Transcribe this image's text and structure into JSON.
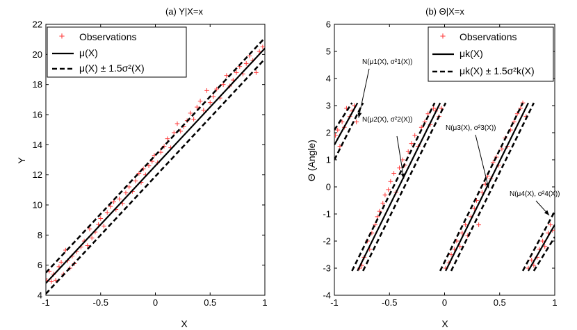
{
  "chart_data": [
    {
      "type": "scatter",
      "title": "(a) Y|X=x",
      "xlabel": "X",
      "ylabel": "Y",
      "xlim": [
        -1,
        1
      ],
      "ylim": [
        4,
        22
      ],
      "xticks": [
        -1,
        -0.5,
        0,
        0.5,
        1
      ],
      "xtick_labels": [
        "-1",
        "-0.5",
        "0",
        "0.5",
        "1"
      ],
      "yticks": [
        4,
        6,
        8,
        10,
        12,
        14,
        16,
        18,
        20,
        22
      ],
      "ytick_labels": [
        "4",
        "6",
        "8",
        "10",
        "12",
        "14",
        "16",
        "18",
        "20",
        "22"
      ],
      "legend": {
        "position": "top-left",
        "entries": [
          "Observations",
          "μ(X)",
          "μ(X) ± 1.5σ²(X)"
        ]
      },
      "series": [
        {
          "name": "Observations",
          "style": "red-plus",
          "points": [
            [
              -0.99,
              5.0
            ],
            [
              -0.97,
              5.6
            ],
            [
              -0.95,
              4.9
            ],
            [
              -0.93,
              5.4
            ],
            [
              -0.91,
              5.0
            ],
            [
              -0.88,
              5.9
            ],
            [
              -0.86,
              6.2
            ],
            [
              -0.84,
              5.4
            ],
            [
              -0.82,
              7.0
            ],
            [
              -0.8,
              6.3
            ],
            [
              -0.78,
              5.8
            ],
            [
              -0.76,
              6.6
            ],
            [
              -0.74,
              6.1
            ],
            [
              -0.72,
              6.9
            ],
            [
              -0.68,
              7.2
            ],
            [
              -0.65,
              7.6
            ],
            [
              -0.62,
              7.3
            ],
            [
              -0.6,
              8.4
            ],
            [
              -0.58,
              7.8
            ],
            [
              -0.55,
              8.2
            ],
            [
              -0.52,
              8.7
            ],
            [
              -0.5,
              9.1
            ],
            [
              -0.47,
              8.6
            ],
            [
              -0.44,
              9.5
            ],
            [
              -0.41,
              9.9
            ],
            [
              -0.38,
              10.2
            ],
            [
              -0.36,
              9.7
            ],
            [
              -0.33,
              10.4
            ],
            [
              -0.3,
              10.1
            ],
            [
              -0.27,
              10.8
            ],
            [
              -0.24,
              11.2
            ],
            [
              -0.21,
              10.9
            ],
            [
              -0.18,
              11.6
            ],
            [
              -0.15,
              12.1
            ],
            [
              -0.13,
              11.5
            ],
            [
              -0.11,
              12.4
            ],
            [
              -0.09,
              12.0
            ],
            [
              -0.06,
              12.6
            ],
            [
              -0.03,
              12.9
            ],
            [
              -0.01,
              13.3
            ],
            [
              0.02,
              12.8
            ],
            [
              0.05,
              13.5
            ],
            [
              0.08,
              13.9
            ],
            [
              0.11,
              14.4
            ],
            [
              0.14,
              13.8
            ],
            [
              0.17,
              14.8
            ],
            [
              0.2,
              15.4
            ],
            [
              0.23,
              14.9
            ],
            [
              0.26,
              15.2
            ],
            [
              0.29,
              15.6
            ],
            [
              0.32,
              16.1
            ],
            [
              0.35,
              15.7
            ],
            [
              0.38,
              16.5
            ],
            [
              0.41,
              16.9
            ],
            [
              0.44,
              16.3
            ],
            [
              0.47,
              17.6
            ],
            [
              0.5,
              16.8
            ],
            [
              0.53,
              17.2
            ],
            [
              0.56,
              17.7
            ],
            [
              0.59,
              17.1
            ],
            [
              0.62,
              18.0
            ],
            [
              0.65,
              18.6
            ],
            [
              0.68,
              17.9
            ],
            [
              0.71,
              18.3
            ],
            [
              0.74,
              18.8
            ],
            [
              0.77,
              19.2
            ],
            [
              0.8,
              18.7
            ],
            [
              0.83,
              19.4
            ],
            [
              0.86,
              19.9
            ],
            [
              0.89,
              19.6
            ],
            [
              0.92,
              18.8
            ],
            [
              0.95,
              20.2
            ],
            [
              0.98,
              20.5
            ]
          ]
        },
        {
          "name": "μ(X)",
          "style": "solid",
          "points": [
            [
              -1,
              4.8
            ],
            [
              1,
              20.4
            ]
          ]
        },
        {
          "name": "μ(X) + 1.5σ²(X)",
          "style": "dashed",
          "points": [
            [
              -1,
              5.5
            ],
            [
              1,
              21.1
            ]
          ]
        },
        {
          "name": "μ(X) − 1.5σ²(X)",
          "style": "dashed",
          "points": [
            [
              -1,
              4.1
            ],
            [
              1,
              19.7
            ]
          ]
        }
      ]
    },
    {
      "type": "scatter",
      "title": "(b) Θ|X=x",
      "xlabel": "X",
      "ylabel": "Θ (Angle)",
      "xlim": [
        -1,
        1
      ],
      "ylim": [
        -4,
        6
      ],
      "xticks": [
        -1,
        -0.5,
        0,
        0.5,
        1
      ],
      "xtick_labels": [
        "-1",
        "-0.5",
        "0",
        "0.5",
        "1"
      ],
      "yticks": [
        -4,
        -3,
        -2,
        -1,
        0,
        1,
        2,
        3,
        4,
        5,
        6
      ],
      "ytick_labels": [
        "-4",
        "-3",
        "-2",
        "-1",
        "0",
        "1",
        "2",
        "3",
        "4",
        "5",
        "6"
      ],
      "legend": {
        "position": "top-right",
        "entries": [
          "Observations",
          "μk(X)",
          "μk(X) ± 1.5σ²k(X)"
        ]
      },
      "annotations": [
        {
          "text": "N(μ1(X), σ²1(X))",
          "target": [
            -0.78,
            2.55
          ]
        },
        {
          "text": "N(μ2(X), σ²2(X))",
          "target": [
            -0.37,
            0.3
          ]
        },
        {
          "text": "N(μ3(X), σ²3(X))",
          "target": [
            0.4,
            -0.05
          ]
        },
        {
          "text": "N(μ4(X), σ²4(X))",
          "target": [
            0.95,
            -1.05
          ]
        }
      ],
      "series": [
        {
          "name": "Observations",
          "style": "red-plus",
          "points": [
            [
              -0.99,
              1.9
            ],
            [
              -0.97,
              2.1
            ],
            [
              -0.95,
              1.5
            ],
            [
              -0.93,
              2.4
            ],
            [
              -0.91,
              2.2
            ],
            [
              -0.89,
              2.9
            ],
            [
              -0.86,
              2.6
            ],
            [
              -0.84,
              2.8
            ],
            [
              -0.82,
              3.0
            ],
            [
              -0.8,
              2.4
            ],
            [
              -0.77,
              -3.0
            ],
            [
              -0.75,
              -2.9
            ],
            [
              -0.73,
              -2.6
            ],
            [
              -0.7,
              -2.0
            ],
            [
              -0.68,
              -2.3
            ],
            [
              -0.66,
              -1.7
            ],
            [
              -0.63,
              -1.4
            ],
            [
              -0.61,
              -1.1
            ],
            [
              -0.59,
              -0.9
            ],
            [
              -0.56,
              -0.6
            ],
            [
              -0.54,
              -0.3
            ],
            [
              -0.51,
              -0.1
            ],
            [
              -0.49,
              0.2
            ],
            [
              -0.46,
              0.5
            ],
            [
              -0.44,
              -0.2
            ],
            [
              -0.41,
              0.7
            ],
            [
              -0.38,
              1.0
            ],
            [
              -0.36,
              0.8
            ],
            [
              -0.33,
              1.3
            ],
            [
              -0.3,
              1.6
            ],
            [
              -0.27,
              1.9
            ],
            [
              -0.24,
              1.5
            ],
            [
              -0.21,
              2.2
            ],
            [
              -0.18,
              2.4
            ],
            [
              -0.15,
              2.7
            ],
            [
              -0.13,
              2.3
            ],
            [
              -0.1,
              2.9
            ],
            [
              -0.08,
              2.8
            ],
            [
              -0.05,
              2.6
            ],
            [
              -0.03,
              2.9
            ],
            [
              0.01,
              -3.0
            ],
            [
              0.04,
              -2.8
            ],
            [
              0.06,
              -2.5
            ],
            [
              0.09,
              -2.3
            ],
            [
              0.11,
              -2.0
            ],
            [
              0.14,
              -2.2
            ],
            [
              0.16,
              -1.7
            ],
            [
              0.19,
              -1.4
            ],
            [
              0.21,
              -1.8
            ],
            [
              0.24,
              -1.1
            ],
            [
              0.27,
              -0.8
            ],
            [
              0.29,
              -0.5
            ],
            [
              0.31,
              -1.4
            ],
            [
              0.34,
              -0.2
            ],
            [
              0.37,
              0.1
            ],
            [
              0.39,
              0.4
            ],
            [
              0.42,
              0.3
            ],
            [
              0.44,
              0.9
            ],
            [
              0.47,
              1.1
            ],
            [
              0.49,
              0.8
            ],
            [
              0.52,
              1.4
            ],
            [
              0.55,
              1.8
            ],
            [
              0.57,
              1.5
            ],
            [
              0.6,
              2.1
            ],
            [
              0.63,
              2.4
            ],
            [
              0.66,
              2.7
            ],
            [
              0.69,
              2.9
            ],
            [
              0.71,
              3.1
            ],
            [
              0.74,
              2.6
            ],
            [
              0.76,
              -3.0
            ],
            [
              0.79,
              -2.7
            ],
            [
              0.81,
              -2.9
            ],
            [
              0.84,
              -2.6
            ],
            [
              0.86,
              -2.3
            ],
            [
              0.89,
              -2.0
            ],
            [
              0.91,
              -2.2
            ],
            [
              0.94,
              -1.7
            ],
            [
              0.96,
              -1.4
            ],
            [
              0.98,
              -1.6
            ]
          ]
        },
        {
          "name": "μ1(X)",
          "style": "solid",
          "points": [
            [
              -1,
              1.55
            ],
            [
              -0.79,
              3.1
            ]
          ]
        },
        {
          "name": "μ1(X) + 1.5σ²1(X)",
          "style": "dashed",
          "points": [
            [
              -1,
              2.1
            ],
            [
              -0.84,
              3.1
            ]
          ]
        },
        {
          "name": "μ1(X) − 1.5σ²1(X)",
          "style": "dashed",
          "points": [
            [
              -1,
              1.0
            ],
            [
              -0.74,
              3.1
            ]
          ]
        },
        {
          "name": "μ2(X)",
          "style": "solid",
          "points": [
            [
              -0.79,
              -3.1
            ],
            [
              -0.04,
              3.1
            ]
          ]
        },
        {
          "name": "μ2(X) + 1.5σ²2(X)",
          "style": "dashed",
          "points": [
            [
              -0.84,
              -3.1
            ],
            [
              -0.09,
              3.1
            ]
          ]
        },
        {
          "name": "μ2(X) − 1.5σ²2(X)",
          "style": "dashed",
          "points": [
            [
              -0.74,
              -3.1
            ],
            [
              0.01,
              3.1
            ]
          ]
        },
        {
          "name": "μ3(X)",
          "style": "solid",
          "points": [
            [
              0.01,
              -3.1
            ],
            [
              0.76,
              3.1
            ]
          ]
        },
        {
          "name": "μ3(X) + 1.5σ²3(X)",
          "style": "dashed",
          "points": [
            [
              -0.04,
              -3.1
            ],
            [
              0.71,
              3.1
            ]
          ]
        },
        {
          "name": "μ3(X) − 1.5σ²3(X)",
          "style": "dashed",
          "points": [
            [
              0.06,
              -3.1
            ],
            [
              0.81,
              3.1
            ]
          ]
        },
        {
          "name": "μ4(X)",
          "style": "solid",
          "points": [
            [
              0.76,
              -3.1
            ],
            [
              1,
              -1.4
            ]
          ]
        },
        {
          "name": "μ4(X) + 1.5σ²4(X)",
          "style": "dashed",
          "points": [
            [
              0.71,
              -3.1
            ],
            [
              1,
              -0.9
            ]
          ]
        },
        {
          "name": "μ4(X) − 1.5σ²4(X)",
          "style": "dashed",
          "points": [
            [
              0.81,
              -3.1
            ],
            [
              1,
              -1.85
            ]
          ]
        }
      ]
    }
  ]
}
